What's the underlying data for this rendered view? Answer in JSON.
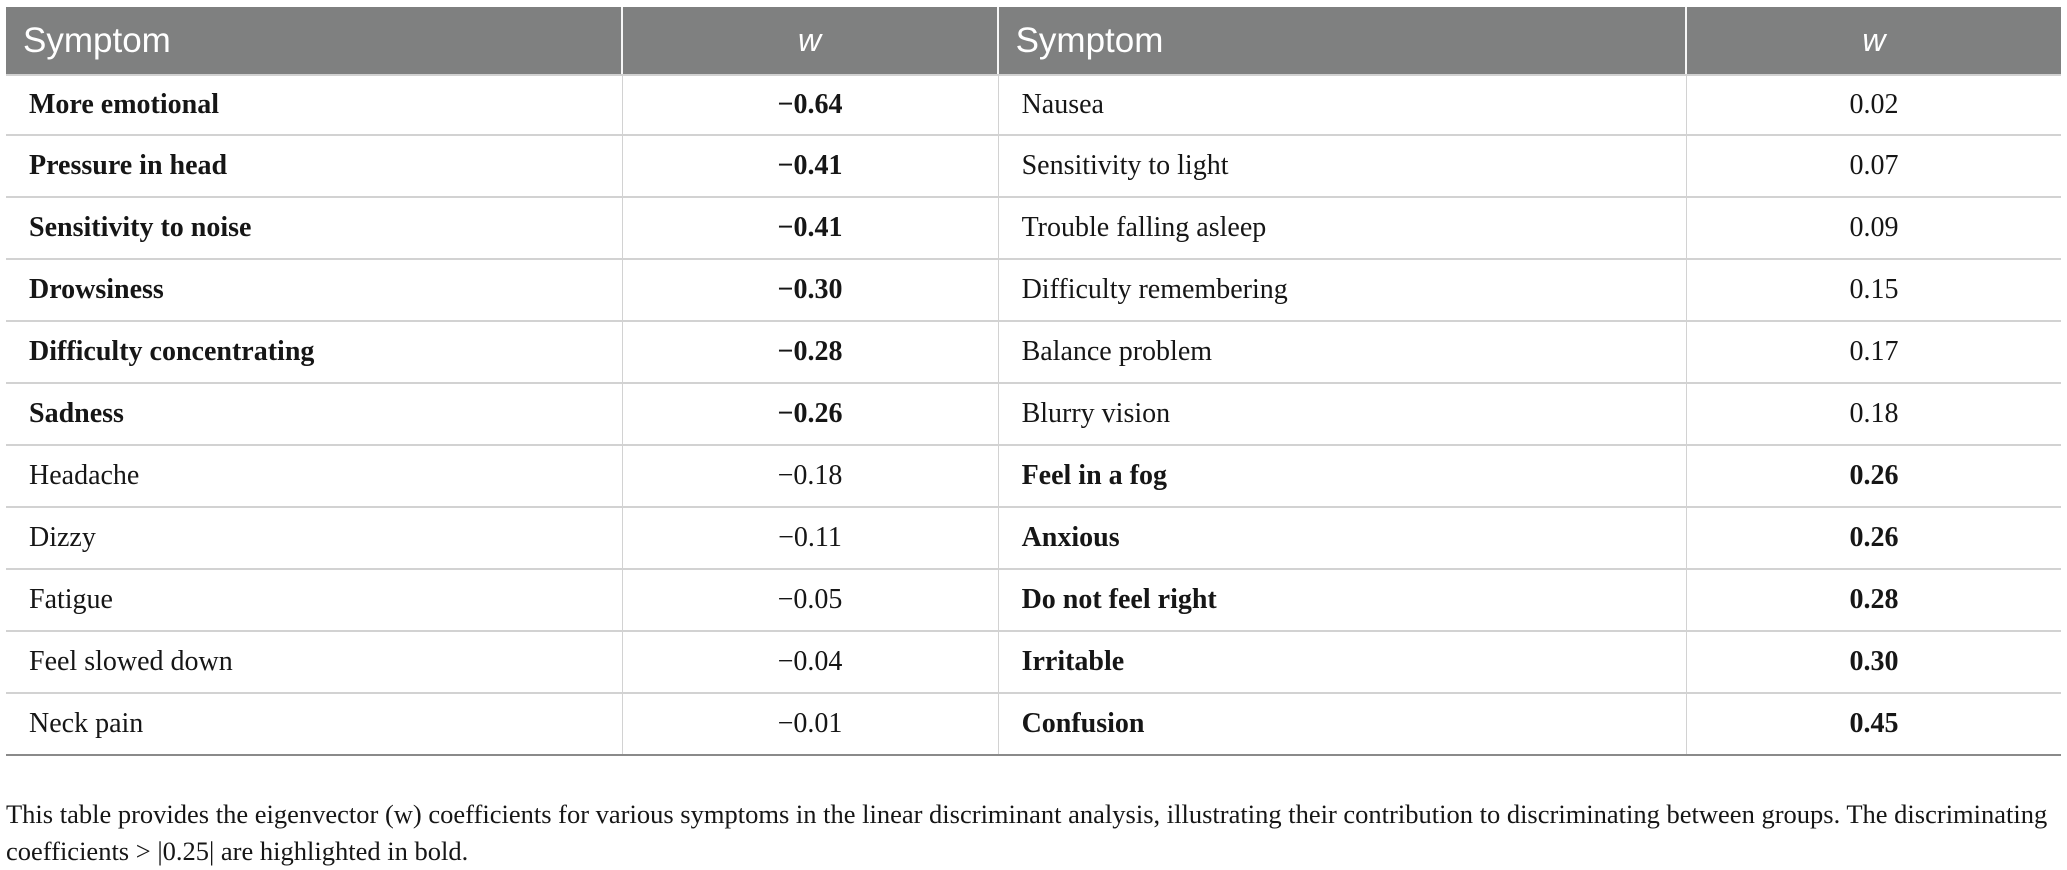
{
  "colors": {
    "header_bg": "#7f8080",
    "grid_line": "#d2d2d2",
    "bottom_line": "#8a8a8a"
  },
  "table": {
    "headers": [
      "Symptom",
      "w",
      "Symptom",
      "w"
    ],
    "left": [
      {
        "symptom": "More emotional",
        "w": "−0.64",
        "bold": true
      },
      {
        "symptom": "Pressure in head",
        "w": "−0.41",
        "bold": true
      },
      {
        "symptom": "Sensitivity to noise",
        "w": "−0.41",
        "bold": true
      },
      {
        "symptom": "Drowsiness",
        "w": "−0.30",
        "bold": true
      },
      {
        "symptom": "Difficulty concentrating",
        "w": "−0.28",
        "bold": true
      },
      {
        "symptom": "Sadness",
        "w": "−0.26",
        "bold": true
      },
      {
        "symptom": "Headache",
        "w": "−0.18",
        "bold": false
      },
      {
        "symptom": "Dizzy",
        "w": "−0.11",
        "bold": false
      },
      {
        "symptom": "Fatigue",
        "w": "−0.05",
        "bold": false
      },
      {
        "symptom": "Feel slowed down",
        "w": "−0.04",
        "bold": false
      },
      {
        "symptom": "Neck pain",
        "w": "−0.01",
        "bold": false
      }
    ],
    "right": [
      {
        "symptom": "Nausea",
        "w": "0.02",
        "bold": false
      },
      {
        "symptom": "Sensitivity to light",
        "w": "0.07",
        "bold": false
      },
      {
        "symptom": "Trouble falling asleep",
        "w": "0.09",
        "bold": false
      },
      {
        "symptom": "Difficulty remembering",
        "w": "0.15",
        "bold": false
      },
      {
        "symptom": "Balance problem",
        "w": "0.17",
        "bold": false
      },
      {
        "symptom": "Blurry vision",
        "w": "0.18",
        "bold": false
      },
      {
        "symptom": "Feel in a fog",
        "w": "0.26",
        "bold": true
      },
      {
        "symptom": "Anxious",
        "w": "0.26",
        "bold": true
      },
      {
        "symptom": "Do not feel right",
        "w": "0.28",
        "bold": true
      },
      {
        "symptom": "Irritable",
        "w": "0.30",
        "bold": true
      },
      {
        "symptom": "Confusion",
        "w": "0.45",
        "bold": true
      }
    ]
  },
  "caption": "This table provides the eigenvector (w) coefficients for various symptoms in the linear discriminant analysis, illustrating their contribution to discriminating between groups. The discriminating coefficients > |0.25| are highlighted in bold."
}
